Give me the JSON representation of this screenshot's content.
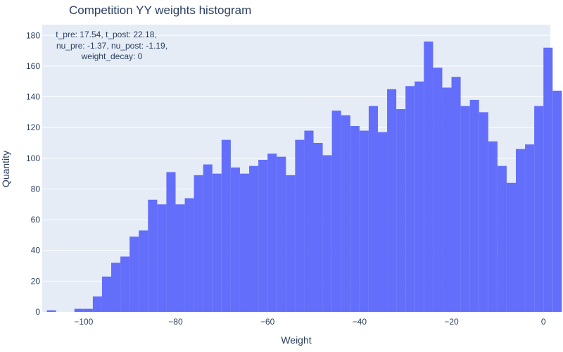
{
  "chart_data": {
    "type": "bar",
    "title": "Competition YY weights histogram",
    "xlabel": "Weight",
    "ylabel": "Quantity",
    "xlim": [
      -109,
      1.5
    ],
    "ylim": [
      0,
      187
    ],
    "x_ticks": [
      -100,
      -80,
      -60,
      -40,
      -20,
      0
    ],
    "y_ticks": [
      0,
      20,
      40,
      60,
      80,
      100,
      120,
      140,
      160,
      180
    ],
    "grid": true,
    "bin_width": 2,
    "bin_start": -108,
    "values": [
      1,
      0,
      0,
      2,
      2,
      10,
      23,
      32,
      36,
      49,
      53,
      73,
      70,
      91,
      70,
      74,
      89,
      96,
      90,
      112,
      94,
      90,
      95,
      99,
      103,
      101,
      89,
      112,
      118,
      110,
      102,
      131,
      128,
      121,
      118,
      134,
      117,
      145,
      132,
      147,
      150,
      176,
      159,
      146,
      153,
      134,
      138,
      130,
      111,
      95,
      84,
      106,
      109,
      134,
      172,
      144
    ],
    "annotation_lines": [
      "t_pre: 17.54, t_post: 22.18,",
      "nu_pre: -1.37, nu_post: -1.19,",
      "weight_decay: 0"
    ],
    "colors": {
      "bar": "#636efa",
      "plot_bg": "#e5ecf6",
      "grid": "#ffffff",
      "text": "#2a3f5f"
    }
  }
}
